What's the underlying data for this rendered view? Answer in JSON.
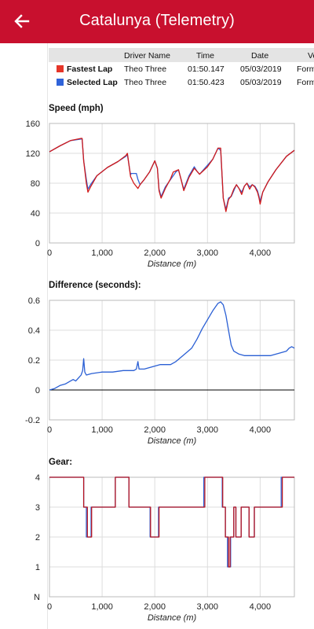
{
  "app_bar": {
    "title": "Catalunya (Telemetry)",
    "back_icon": "arrow-left-icon",
    "background": "#c8102e"
  },
  "lap_table": {
    "columns": [
      "Driver Name",
      "Time",
      "Date",
      "Ve"
    ],
    "rows": [
      {
        "label": "Fastest Lap",
        "color": "#e53528",
        "driver": "Theo Three",
        "time": "01:50.147",
        "date": "05/03/2019",
        "vehicle": "Form"
      },
      {
        "label": "Selected Lap",
        "color": "#2f63d9",
        "driver": "Theo Three",
        "time": "01:50.423",
        "date": "05/03/2019",
        "vehicle": "Form"
      }
    ]
  },
  "chart_data": [
    {
      "type": "line",
      "title": "Speed (mph)",
      "xlabel": "Distance (m)",
      "ylabel": "",
      "xlim": [
        0,
        4650
      ],
      "ylim": [
        0,
        160
      ],
      "xticks": [
        "0",
        "1,000",
        "2,000",
        "3,000",
        "4,000"
      ],
      "yticks": [
        "160",
        "120",
        "80",
        "40",
        "0"
      ],
      "series": [
        {
          "color": "#2f63d9",
          "points": [
            [
              0,
              122
            ],
            [
              200,
              130
            ],
            [
              400,
              137
            ],
            [
              600,
              139
            ],
            [
              620,
              139
            ],
            [
              650,
              110
            ],
            [
              700,
              85
            ],
            [
              730,
              72
            ],
            [
              780,
              78
            ],
            [
              900,
              90
            ],
            [
              1100,
              101
            ],
            [
              1300,
              109
            ],
            [
              1450,
              116
            ],
            [
              1480,
              118
            ],
            [
              1540,
              91
            ],
            [
              1550,
              93
            ],
            [
              1650,
              93
            ],
            [
              1680,
              85
            ],
            [
              1720,
              78
            ],
            [
              1800,
              85
            ],
            [
              1900,
              95
            ],
            [
              2000,
              110
            ],
            [
              2050,
              100
            ],
            [
              2080,
              72
            ],
            [
              2120,
              62
            ],
            [
              2200,
              75
            ],
            [
              2300,
              85
            ],
            [
              2400,
              95
            ],
            [
              2450,
              98
            ],
            [
              2500,
              85
            ],
            [
              2550,
              72
            ],
            [
              2650,
              90
            ],
            [
              2750,
              102
            ],
            [
              2800,
              96
            ],
            [
              2850,
              92
            ],
            [
              3000,
              104
            ],
            [
              3100,
              112
            ],
            [
              3200,
              127
            ],
            [
              3250,
              124
            ],
            [
              3300,
              60
            ],
            [
              3350,
              45
            ],
            [
              3400,
              60
            ],
            [
              3450,
              62
            ],
            [
              3550,
              78
            ],
            [
              3600,
              73
            ],
            [
              3650,
              68
            ],
            [
              3700,
              76
            ],
            [
              3750,
              80
            ],
            [
              3800,
              75
            ],
            [
              3850,
              78
            ],
            [
              3900,
              76
            ],
            [
              3950,
              70
            ],
            [
              3980,
              62
            ],
            [
              4000,
              56
            ],
            [
              4050,
              68
            ],
            [
              4150,
              82
            ],
            [
              4300,
              98
            ],
            [
              4500,
              116
            ],
            [
              4650,
              124
            ]
          ]
        },
        {
          "color": "#d11a1a",
          "points": [
            [
              0,
              122
            ],
            [
              200,
              130
            ],
            [
              400,
              137
            ],
            [
              600,
              140
            ],
            [
              620,
              140
            ],
            [
              650,
              110
            ],
            [
              700,
              80
            ],
            [
              730,
              68
            ],
            [
              780,
              75
            ],
            [
              900,
              90
            ],
            [
              1100,
              101
            ],
            [
              1300,
              109
            ],
            [
              1450,
              117
            ],
            [
              1480,
              120
            ],
            [
              1540,
              89
            ],
            [
              1600,
              80
            ],
            [
              1680,
              73
            ],
            [
              1720,
              78
            ],
            [
              1800,
              85
            ],
            [
              1900,
              95
            ],
            [
              2000,
              110
            ],
            [
              2050,
              100
            ],
            [
              2080,
              70
            ],
            [
              2120,
              60
            ],
            [
              2200,
              73
            ],
            [
              2300,
              86
            ],
            [
              2350,
              95
            ],
            [
              2450,
              98
            ],
            [
              2500,
              85
            ],
            [
              2550,
              70
            ],
            [
              2650,
              88
            ],
            [
              2750,
              100
            ],
            [
              2800,
              96
            ],
            [
              2850,
              92
            ],
            [
              3000,
              102
            ],
            [
              3100,
              112
            ],
            [
              3200,
              127
            ],
            [
              3250,
              127
            ],
            [
              3300,
              60
            ],
            [
              3350,
              42
            ],
            [
              3400,
              58
            ],
            [
              3450,
              63
            ],
            [
              3500,
              72
            ],
            [
              3550,
              78
            ],
            [
              3600,
              73
            ],
            [
              3650,
              65
            ],
            [
              3700,
              76
            ],
            [
              3750,
              80
            ],
            [
              3800,
              72
            ],
            [
              3850,
              78
            ],
            [
              3900,
              75
            ],
            [
              3950,
              68
            ],
            [
              3980,
              60
            ],
            [
              4000,
              52
            ],
            [
              4050,
              68
            ],
            [
              4150,
              82
            ],
            [
              4300,
              98
            ],
            [
              4500,
              116
            ],
            [
              4650,
              124
            ]
          ]
        }
      ]
    },
    {
      "type": "line",
      "title": "Difference (seconds):",
      "xlabel": "Distance (m)",
      "ylabel": "",
      "xlim": [
        0,
        4650
      ],
      "ylim": [
        -0.2,
        0.6
      ],
      "xticks": [
        "0",
        "1,000",
        "2,000",
        "3,000",
        "4,000"
      ],
      "yticks": [
        "0.6",
        "0.4",
        "0.2",
        "0",
        "-0.2"
      ],
      "series": [
        {
          "color": "#2a5fd4",
          "points": [
            [
              0,
              0
            ],
            [
              100,
              0.01
            ],
            [
              200,
              0.03
            ],
            [
              300,
              0.04
            ],
            [
              400,
              0.06
            ],
            [
              450,
              0.07
            ],
            [
              500,
              0.06
            ],
            [
              550,
              0.08
            ],
            [
              600,
              0.1
            ],
            [
              630,
              0.13
            ],
            [
              650,
              0.21
            ],
            [
              670,
              0.12
            ],
            [
              700,
              0.1
            ],
            [
              800,
              0.11
            ],
            [
              1000,
              0.12
            ],
            [
              1200,
              0.12
            ],
            [
              1400,
              0.13
            ],
            [
              1600,
              0.13
            ],
            [
              1650,
              0.14
            ],
            [
              1680,
              0.19
            ],
            [
              1700,
              0.14
            ],
            [
              1800,
              0.14
            ],
            [
              1900,
              0.15
            ],
            [
              2000,
              0.16
            ],
            [
              2100,
              0.17
            ],
            [
              2200,
              0.17
            ],
            [
              2300,
              0.17
            ],
            [
              2400,
              0.19
            ],
            [
              2500,
              0.22
            ],
            [
              2600,
              0.25
            ],
            [
              2700,
              0.28
            ],
            [
              2800,
              0.34
            ],
            [
              2900,
              0.41
            ],
            [
              3000,
              0.47
            ],
            [
              3100,
              0.53
            ],
            [
              3200,
              0.58
            ],
            [
              3250,
              0.59
            ],
            [
              3300,
              0.57
            ],
            [
              3350,
              0.5
            ],
            [
              3400,
              0.4
            ],
            [
              3450,
              0.3
            ],
            [
              3500,
              0.26
            ],
            [
              3600,
              0.24
            ],
            [
              3700,
              0.23
            ],
            [
              3800,
              0.23
            ],
            [
              3900,
              0.23
            ],
            [
              4000,
              0.23
            ],
            [
              4100,
              0.23
            ],
            [
              4200,
              0.23
            ],
            [
              4300,
              0.24
            ],
            [
              4400,
              0.25
            ],
            [
              4500,
              0.26
            ],
            [
              4550,
              0.28
            ],
            [
              4600,
              0.29
            ],
            [
              4650,
              0.28
            ]
          ]
        }
      ]
    },
    {
      "type": "line",
      "title": "Gear:",
      "xlabel": "Distance (m)",
      "ylabel": "",
      "xlim": [
        0,
        4650
      ],
      "ylim": [
        0,
        4
      ],
      "xticks": [
        "0",
        "1,000",
        "2,000",
        "3,000",
        "4,000"
      ],
      "yticks": [
        "4",
        "3",
        "2",
        "1",
        "N"
      ],
      "series": [
        {
          "color": "#2f63d9",
          "points": [
            [
              0,
              4
            ],
            [
              650,
              4
            ],
            [
              650,
              3
            ],
            [
              700,
              3
            ],
            [
              700,
              2
            ],
            [
              790,
              2
            ],
            [
              790,
              3
            ],
            [
              1250,
              3
            ],
            [
              1250,
              4
            ],
            [
              1510,
              4
            ],
            [
              1510,
              3
            ],
            [
              1910,
              3
            ],
            [
              1910,
              2
            ],
            [
              2070,
              2
            ],
            [
              2070,
              3
            ],
            [
              2930,
              3
            ],
            [
              2930,
              4
            ],
            [
              3280,
              4
            ],
            [
              3280,
              3
            ],
            [
              3340,
              3
            ],
            [
              3340,
              2
            ],
            [
              3380,
              2
            ],
            [
              3380,
              1
            ],
            [
              3440,
              1
            ],
            [
              3440,
              2
            ],
            [
              3500,
              2
            ],
            [
              3500,
              3
            ],
            [
              3540,
              3
            ],
            [
              3540,
              2
            ],
            [
              3640,
              2
            ],
            [
              3640,
              3
            ],
            [
              3790,
              3
            ],
            [
              3790,
              2
            ],
            [
              3890,
              2
            ],
            [
              3890,
              3
            ],
            [
              4400,
              3
            ],
            [
              4400,
              4
            ],
            [
              4650,
              4
            ]
          ]
        },
        {
          "color": "#b8141f",
          "points": [
            [
              0,
              4
            ],
            [
              650,
              4
            ],
            [
              650,
              3
            ],
            [
              720,
              3
            ],
            [
              720,
              2
            ],
            [
              800,
              2
            ],
            [
              800,
              3
            ],
            [
              1250,
              3
            ],
            [
              1250,
              4
            ],
            [
              1510,
              4
            ],
            [
              1510,
              3
            ],
            [
              1920,
              3
            ],
            [
              1920,
              2
            ],
            [
              2080,
              2
            ],
            [
              2080,
              3
            ],
            [
              2950,
              3
            ],
            [
              2950,
              4
            ],
            [
              3290,
              4
            ],
            [
              3290,
              3
            ],
            [
              3340,
              3
            ],
            [
              3340,
              2
            ],
            [
              3400,
              2
            ],
            [
              3400,
              1
            ],
            [
              3430,
              1
            ],
            [
              3430,
              2
            ],
            [
              3500,
              2
            ],
            [
              3500,
              3
            ],
            [
              3540,
              3
            ],
            [
              3540,
              2
            ],
            [
              3640,
              2
            ],
            [
              3640,
              3
            ],
            [
              3790,
              3
            ],
            [
              3790,
              2
            ],
            [
              3890,
              2
            ],
            [
              3890,
              3
            ],
            [
              4420,
              3
            ],
            [
              4420,
              4
            ],
            [
              4650,
              4
            ]
          ]
        }
      ]
    }
  ]
}
